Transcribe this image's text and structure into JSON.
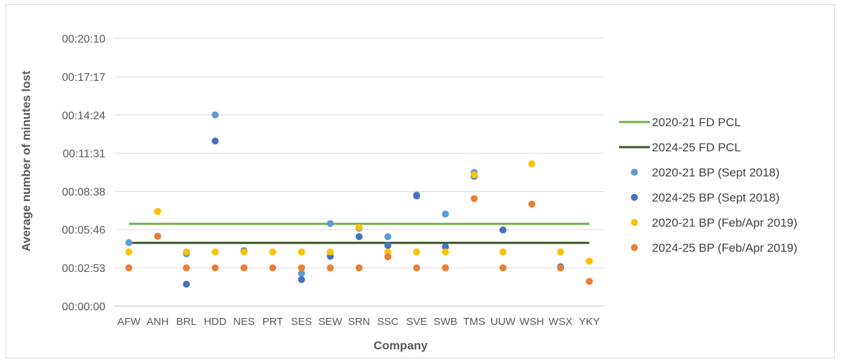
{
  "chart_data": {
    "type": "scatter",
    "xlabel": "Company",
    "ylabel": "Average number of minutes lost",
    "y_unit": "hh:mm:ss",
    "ylim": [
      0,
      1210
    ],
    "yticks": [
      "00:00:00",
      "00:02:53",
      "00:05:46",
      "00:08:38",
      "00:11:31",
      "00:14:24",
      "00:17:17",
      "00:20:10"
    ],
    "ytick_values": [
      0,
      173,
      346,
      518,
      691,
      864,
      1037,
      1210
    ],
    "grid": true,
    "legend_position": "right",
    "categories": [
      "AFW",
      "ANH",
      "BRL",
      "HDD",
      "NES",
      "PRT",
      "SES",
      "SEW",
      "SRN",
      "SSC",
      "SVE",
      "SWB",
      "TMS",
      "UUW",
      "WSH",
      "WSX",
      "YKY"
    ],
    "reference_lines": [
      {
        "name": "2020-21 FD PCL",
        "value": 372,
        "color": "#70ad47"
      },
      {
        "name": "2024-25 FD PCL",
        "value": 286,
        "color": "#375623"
      }
    ],
    "series": [
      {
        "name": "2020-21 BP (Sept 2018)",
        "color": "#5b9bd5",
        "values": [
          287,
          null,
          236,
          864,
          247,
          null,
          148,
          373,
          352,
          314,
          502,
          416,
          604,
          null,
          null,
          null,
          null
        ]
      },
      {
        "name": "2024-25 BP (Sept 2018)",
        "color": "#4472c4",
        "values": [
          null,
          null,
          99,
          746,
          250,
          null,
          120,
          225,
          314,
          274,
          498,
          268,
          587,
          344,
          null,
          178,
          null
        ]
      },
      {
        "name": "2020-21 BP (Feb/Apr 2019)",
        "color": "#ffc000",
        "values": [
          245,
          428,
          245,
          245,
          245,
          245,
          245,
          245,
          356,
          245,
          245,
          245,
          593,
          245,
          643,
          245,
          203
        ]
      },
      {
        "name": "2024-25 BP (Feb/Apr 2019)",
        "color": "#ed7d31",
        "values": [
          173,
          316,
          173,
          173,
          173,
          173,
          173,
          173,
          173,
          223,
          173,
          173,
          486,
          173,
          461,
          173,
          112
        ]
      }
    ]
  }
}
